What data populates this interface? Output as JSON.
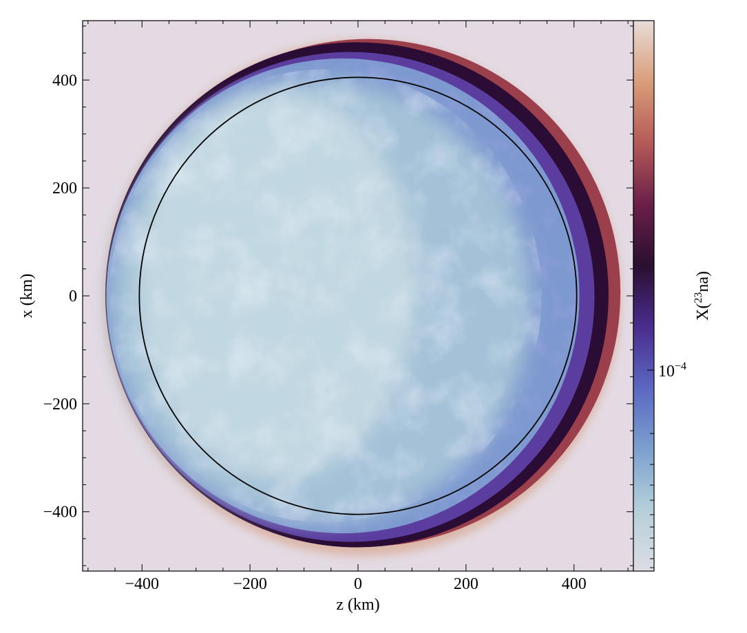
{
  "chart_data": {
    "type": "heatmap",
    "xlabel": "z  (km)",
    "ylabel": "x  (km)",
    "xlim": [
      -510,
      510
    ],
    "ylim": [
      -510,
      510
    ],
    "x_ticks": [
      {
        "value": -400,
        "label": "−400"
      },
      {
        "value": -200,
        "label": "−200"
      },
      {
        "value": 0,
        "label": "0"
      },
      {
        "value": 200,
        "label": "200"
      },
      {
        "value": 400,
        "label": "400"
      }
    ],
    "y_ticks": [
      {
        "value": 400,
        "label": "400"
      },
      {
        "value": 200,
        "label": "200"
      },
      {
        "value": 0,
        "label": "0"
      },
      {
        "value": -200,
        "label": "−200"
      },
      {
        "value": -400,
        "label": "−400"
      }
    ],
    "minor_tick_step": 50,
    "background_color": "#e3dae3",
    "overlay_circle": {
      "center_z": 0,
      "center_x": 0,
      "radius_km": 405,
      "color": "#000000"
    },
    "colorbar": {
      "label_prefix": "X(",
      "label_sup": "23",
      "label_suffix": "na)",
      "scale": "log",
      "tick": {
        "base": "10",
        "exp": "−4"
      },
      "colormap": [
        "#dcdde3",
        "#b5cfda",
        "#7ba0cf",
        "#5b67c1",
        "#4a2c8e",
        "#2a0f30",
        "#6b1f48",
        "#b45a58",
        "#d99d79",
        "#e8dcd9"
      ]
    },
    "colors": {
      "blob_light": "#c7dbe3",
      "blob_mid": "#a9c6d8",
      "blob_blue": "#7d99cf",
      "rim_purple": "#5a3d9e",
      "rim_dark": "#2a0c35",
      "rim_red": "#9b3f4d",
      "rim_orange": "#d69a7a"
    }
  }
}
